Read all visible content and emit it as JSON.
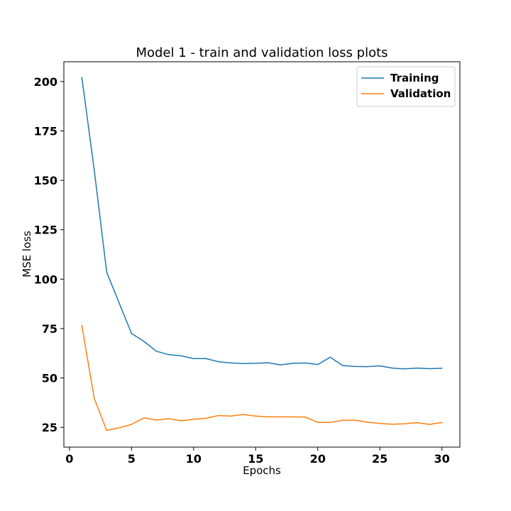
{
  "chart_data": {
    "type": "line",
    "title": "Model 1 - train and validation loss plots",
    "xlabel": "Epochs",
    "ylabel": "MSE loss",
    "xlim": [
      -0.45,
      31.45
    ],
    "ylim": [
      15,
      210
    ],
    "xticks": [
      0,
      5,
      10,
      15,
      20,
      25,
      30
    ],
    "yticks": [
      25,
      50,
      75,
      100,
      125,
      150,
      175,
      200
    ],
    "grid": false,
    "legend_placement": "top-right",
    "x": [
      1,
      2,
      3,
      4,
      5,
      6,
      7,
      8,
      9,
      10,
      11,
      12,
      13,
      14,
      15,
      16,
      17,
      18,
      19,
      20,
      21,
      22,
      23,
      24,
      25,
      26,
      27,
      28,
      29,
      30
    ],
    "series": [
      {
        "name": "Training",
        "color": "#1f77b4",
        "values": [
          202.0,
          155.0,
          103.5,
          88.0,
          72.5,
          68.5,
          63.5,
          61.8,
          61.2,
          59.8,
          59.8,
          58.2,
          57.6,
          57.3,
          57.4,
          57.7,
          56.6,
          57.4,
          57.6,
          56.8,
          60.5,
          56.3,
          55.8,
          55.7,
          56.1,
          55.0,
          54.6,
          55.0,
          54.7,
          54.9
        ]
      },
      {
        "name": "Validation",
        "color": "#ff7f0e",
        "values": [
          76.5,
          39.5,
          23.5,
          24.8,
          26.5,
          29.8,
          28.7,
          29.4,
          28.3,
          29.1,
          29.6,
          31.0,
          30.7,
          31.5,
          30.7,
          30.3,
          30.3,
          30.3,
          30.2,
          27.5,
          27.5,
          28.6,
          28.6,
          27.6,
          27.0,
          26.6,
          26.8,
          27.4,
          26.5,
          27.5
        ]
      }
    ]
  }
}
